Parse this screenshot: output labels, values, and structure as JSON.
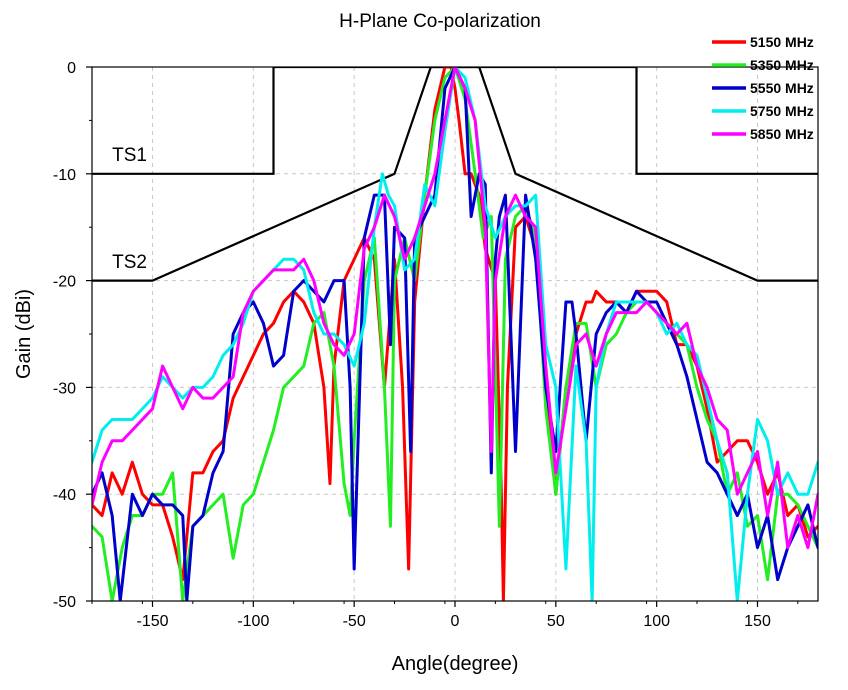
{
  "chart_data": {
    "type": "line",
    "title": "H-Plane Co-polarization",
    "xlabel": "Angle(degree)",
    "ylabel": "Gain (dBi)",
    "xlim": [
      -180,
      180
    ],
    "ylim": [
      -50,
      0
    ],
    "xticks": [
      -150,
      -100,
      -50,
      0,
      50,
      100,
      150
    ],
    "yticks": [
      0,
      -10,
      -20,
      -30,
      -40,
      -50
    ],
    "grid": true,
    "legend_position": "top-right",
    "masks": [
      {
        "name": "TS1",
        "points": [
          [
            -180,
            -10
          ],
          [
            -90,
            -10
          ],
          [
            -90,
            0
          ],
          [
            90,
            0
          ],
          [
            90,
            -10
          ],
          [
            180,
            -10
          ]
        ]
      },
      {
        "name": "TS2",
        "points": [
          [
            -180,
            -20
          ],
          [
            -150,
            -20
          ],
          [
            -30,
            -10
          ],
          [
            -12,
            0
          ],
          [
            12,
            0
          ],
          [
            30,
            -10
          ],
          [
            150,
            -20
          ],
          [
            180,
            -20
          ]
        ]
      }
    ],
    "series": [
      {
        "name": "5150 MHz",
        "color": "#ff0000",
        "x": [
          -180,
          -175,
          -170,
          -165,
          -160,
          -155,
          -150,
          -145,
          -140,
          -135,
          -130,
          -125,
          -120,
          -115,
          -110,
          -105,
          -100,
          -95,
          -90,
          -85,
          -80,
          -75,
          -70,
          -65,
          -62,
          -60,
          -55,
          -50,
          -45,
          -40,
          -35,
          -30,
          -26,
          -23,
          -20,
          -15,
          -10,
          -5,
          -2,
          0,
          2,
          5,
          8,
          12,
          15,
          20,
          23,
          24,
          26,
          30,
          35,
          40,
          45,
          50,
          55,
          60,
          65,
          68,
          70,
          75,
          80,
          85,
          90,
          95,
          100,
          105,
          110,
          115,
          120,
          125,
          130,
          135,
          140,
          145,
          150,
          155,
          160,
          165,
          170,
          175,
          180
        ],
        "y": [
          -41,
          -42,
          -38,
          -40,
          -37,
          -40,
          -41,
          -41,
          -44,
          -48,
          -38,
          -38,
          -36,
          -35,
          -31,
          -29,
          -27,
          -25,
          -24,
          -22,
          -21,
          -22,
          -24,
          -30,
          -39,
          -28,
          -20,
          -18,
          -16,
          -18,
          -30,
          -18,
          -30,
          -47,
          -22,
          -12,
          -4,
          0,
          0,
          -2,
          -5,
          -10,
          -10,
          -12,
          -17,
          -20,
          -40,
          -50,
          -30,
          -15,
          -14,
          -17,
          -30,
          -40,
          -30,
          -25,
          -22,
          -22,
          -21,
          -22,
          -22,
          -23,
          -21,
          -21,
          -21,
          -22,
          -26,
          -26,
          -28,
          -32,
          -37,
          -36,
          -35,
          -35,
          -37,
          -40,
          -38,
          -42,
          -41,
          -44,
          -43
        ]
      },
      {
        "name": "5350 MHz",
        "color": "#22ee22",
        "x": [
          -180,
          -175,
          -170,
          -165,
          -160,
          -155,
          -150,
          -145,
          -140,
          -135,
          -130,
          -125,
          -120,
          -115,
          -110,
          -105,
          -100,
          -95,
          -90,
          -85,
          -80,
          -75,
          -70,
          -65,
          -60,
          -55,
          -52,
          -50,
          -45,
          -40,
          -35,
          -32,
          -30,
          -25,
          -20,
          -15,
          -10,
          -5,
          0,
          5,
          10,
          14,
          18,
          22,
          25,
          30,
          35,
          40,
          45,
          50,
          55,
          60,
          65,
          70,
          75,
          80,
          85,
          90,
          95,
          100,
          105,
          110,
          115,
          120,
          125,
          130,
          135,
          140,
          145,
          150,
          155,
          160,
          165,
          170,
          175,
          180
        ],
        "y": [
          -43,
          -44,
          -50,
          -45,
          -42,
          -42,
          -40,
          -40,
          -38,
          -50,
          -43,
          -42,
          -41,
          -40,
          -46,
          -41,
          -40,
          -37,
          -34,
          -30,
          -29,
          -28,
          -24,
          -23,
          -28,
          -39,
          -42,
          -35,
          -20,
          -16,
          -30,
          -43,
          -20,
          -16,
          -20,
          -12,
          -5,
          -1,
          0,
          -3,
          -10,
          -16,
          -14,
          -43,
          -18,
          -14,
          -13,
          -16,
          -32,
          -40,
          -30,
          -24,
          -24,
          -30,
          -26,
          -25,
          -23,
          -22,
          -22,
          -23,
          -24,
          -25,
          -26,
          -30,
          -33,
          -35,
          -40,
          -38,
          -43,
          -42,
          -48,
          -40,
          -40,
          -41,
          -43,
          -45
        ]
      },
      {
        "name": "5550 MHz",
        "color": "#0000cc",
        "x": [
          -180,
          -175,
          -170,
          -166,
          -163,
          -160,
          -155,
          -150,
          -145,
          -140,
          -135,
          -133,
          -130,
          -125,
          -120,
          -115,
          -110,
          -105,
          -100,
          -95,
          -90,
          -85,
          -80,
          -75,
          -70,
          -65,
          -60,
          -55,
          -52,
          -50,
          -45,
          -40,
          -35,
          -32,
          -30,
          -25,
          -22,
          -20,
          -15,
          -10,
          -5,
          0,
          5,
          8,
          12,
          15,
          18,
          20,
          22,
          25,
          30,
          35,
          40,
          45,
          50,
          55,
          58,
          60,
          65,
          70,
          75,
          80,
          85,
          90,
          95,
          100,
          105,
          110,
          115,
          120,
          125,
          130,
          135,
          140,
          145,
          150,
          155,
          160,
          165,
          170,
          175,
          180
        ],
        "y": [
          -40,
          -38,
          -42,
          -50,
          -45,
          -40,
          -42,
          -40,
          -41,
          -41,
          -42,
          -50,
          -43,
          -42,
          -38,
          -36,
          -25,
          -23,
          -22,
          -24,
          -28,
          -27,
          -21,
          -20,
          -21,
          -22,
          -20,
          -20,
          -30,
          -47,
          -16,
          -12,
          -12,
          -26,
          -15,
          -16,
          -36,
          -16,
          -14,
          -12,
          -2,
          0,
          -2,
          -14,
          -10,
          -11,
          -38,
          -18,
          -14,
          -12,
          -36,
          -12,
          -18,
          -30,
          -36,
          -22,
          -22,
          -25,
          -35,
          -25,
          -23,
          -22,
          -23,
          -21,
          -22,
          -22,
          -24,
          -26,
          -29,
          -33,
          -37,
          -38,
          -40,
          -42,
          -40,
          -45,
          -42,
          -48,
          -45,
          -43,
          -41,
          -45
        ]
      },
      {
        "name": "5750 MHz",
        "color": "#00eeee",
        "x": [
          -180,
          -175,
          -170,
          -165,
          -160,
          -155,
          -150,
          -145,
          -140,
          -135,
          -130,
          -125,
          -120,
          -115,
          -110,
          -105,
          -100,
          -95,
          -90,
          -85,
          -80,
          -75,
          -70,
          -65,
          -60,
          -55,
          -50,
          -45,
          -40,
          -36,
          -33,
          -30,
          -25,
          -20,
          -15,
          -10,
          -5,
          0,
          5,
          10,
          15,
          20,
          25,
          30,
          35,
          40,
          45,
          50,
          55,
          60,
          65,
          68,
          70,
          75,
          80,
          85,
          90,
          95,
          100,
          105,
          110,
          115,
          120,
          125,
          130,
          135,
          140,
          145,
          150,
          155,
          160,
          165,
          170,
          175,
          180
        ],
        "y": [
          -37,
          -34,
          -33,
          -33,
          -33,
          -32,
          -31,
          -29,
          -30,
          -31,
          -30,
          -30,
          -29,
          -27,
          -26,
          -24,
          -21,
          -20,
          -19,
          -18,
          -18,
          -19,
          -23,
          -25,
          -25,
          -26,
          -28,
          -24,
          -15,
          -10,
          -12,
          -13,
          -19,
          -18,
          -11,
          -13,
          -6,
          0,
          -1,
          -5,
          -13,
          -16,
          -14,
          -13,
          -13,
          -12,
          -26,
          -30,
          -47,
          -28,
          -35,
          -50,
          -30,
          -25,
          -22,
          -22,
          -22,
          -22,
          -23,
          -25,
          -24,
          -26,
          -27,
          -31,
          -35,
          -38,
          -50,
          -40,
          -33,
          -35,
          -40,
          -38,
          -40,
          -40,
          -37
        ]
      },
      {
        "name": "5850 MHz",
        "color": "#ff00ff",
        "x": [
          -180,
          -175,
          -170,
          -165,
          -160,
          -155,
          -150,
          -145,
          -140,
          -135,
          -130,
          -125,
          -120,
          -115,
          -110,
          -105,
          -100,
          -95,
          -90,
          -85,
          -80,
          -75,
          -70,
          -65,
          -60,
          -55,
          -50,
          -45,
          -40,
          -35,
          -30,
          -25,
          -20,
          -15,
          -10,
          -5,
          0,
          5,
          10,
          15,
          18,
          20,
          25,
          30,
          35,
          40,
          45,
          50,
          55,
          60,
          65,
          70,
          75,
          80,
          85,
          90,
          95,
          100,
          105,
          110,
          115,
          120,
          125,
          130,
          135,
          140,
          145,
          150,
          155,
          160,
          165,
          170,
          175,
          180
        ],
        "y": [
          -41,
          -37,
          -35,
          -35,
          -34,
          -33,
          -32,
          -28,
          -30,
          -32,
          -30,
          -31,
          -31,
          -30,
          -29,
          -23,
          -21,
          -20,
          -19,
          -19,
          -19,
          -18,
          -20,
          -24,
          -26,
          -27,
          -25,
          -17,
          -15,
          -12,
          -14,
          -18,
          -16,
          -13,
          -10,
          -5,
          0,
          -2,
          -5,
          -15,
          -36,
          -20,
          -14,
          -12,
          -14,
          -15,
          -28,
          -38,
          -32,
          -26,
          -25,
          -28,
          -25,
          -23,
          -23,
          -23,
          -22,
          -23,
          -24,
          -25,
          -24,
          -28,
          -30,
          -33,
          -34,
          -40,
          -38,
          -36,
          -42,
          -37,
          -45,
          -42,
          -45,
          -40
        ]
      }
    ]
  }
}
